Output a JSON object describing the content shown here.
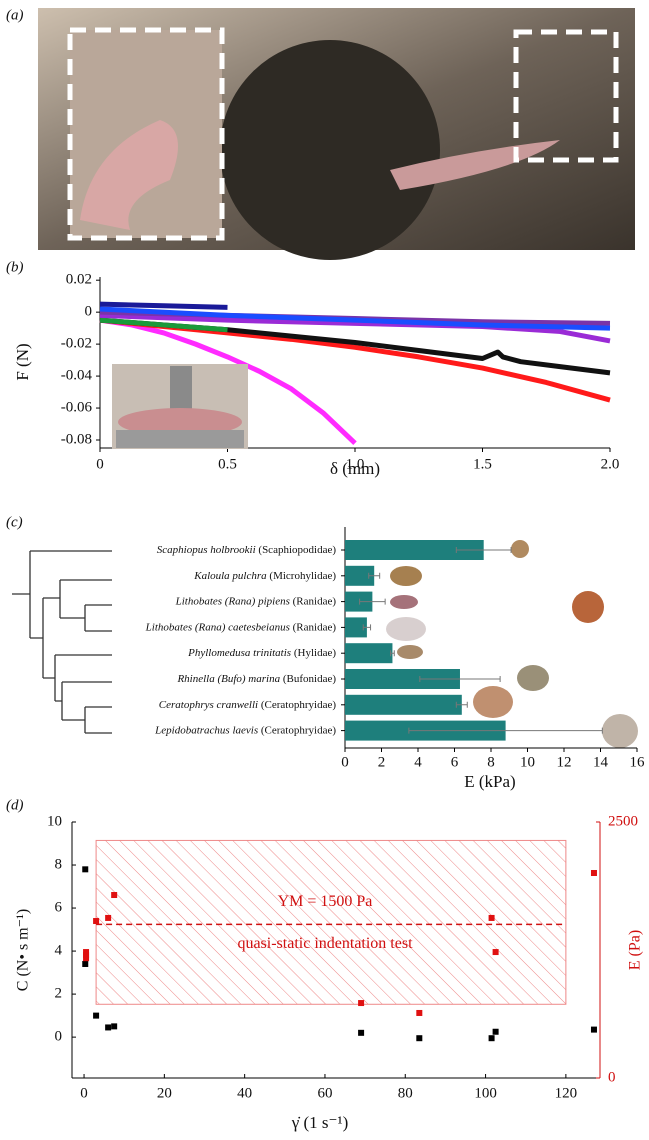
{
  "chart_data": [
    {
      "type": "image",
      "panel_label": "(a)"
    },
    {
      "type": "line",
      "panel_label": "(b)",
      "ylabel": "F (N)",
      "xlabel": "δ (mm)",
      "xlim": [
        0,
        2
      ],
      "ylim": [
        -0.085,
        0.022
      ],
      "xticks": [
        0,
        0.5,
        {
          "value": 1,
          "label": "1.0"
        },
        1.5,
        {
          "value": 2,
          "label": "2.0"
        }
      ],
      "yticks": [
        0.02,
        0,
        -0.02,
        -0.04,
        -0.06,
        -0.08
      ],
      "series": [
        {
          "color": "#ff2bff",
          "x": [
            0,
            0.125,
            0.25,
            0.375,
            0.5,
            0.625,
            0.75,
            0.875,
            1.0
          ],
          "values": [
            -0.005,
            -0.008,
            -0.013,
            -0.02,
            -0.028,
            -0.037,
            -0.048,
            -0.063,
            -0.082
          ]
        },
        {
          "color": "#ff1a1a",
          "x": [
            0,
            0.25,
            0.5,
            0.75,
            1.0,
            1.25,
            1.5,
            1.75,
            2.0
          ],
          "values": [
            -0.005,
            -0.009,
            -0.013,
            -0.017,
            -0.022,
            -0.028,
            -0.035,
            -0.044,
            -0.055
          ]
        },
        {
          "color": "#111111",
          "x": [
            0,
            0.25,
            0.5,
            0.75,
            1.0,
            1.25,
            1.5,
            1.56,
            1.58,
            1.65,
            1.8,
            2.0
          ],
          "values": [
            -0.005,
            -0.008,
            -0.011,
            -0.015,
            -0.019,
            -0.024,
            -0.029,
            -0.025,
            -0.028,
            -0.031,
            -0.034,
            -0.038
          ]
        },
        {
          "color": "#1a9a3a",
          "x": [
            0,
            0.25,
            0.5
          ],
          "values": [
            -0.005,
            -0.008,
            -0.011
          ]
        },
        {
          "color": "#9a2bd6",
          "x": [
            0,
            0.5,
            1.0,
            1.5,
            1.8,
            2.0
          ],
          "values": [
            -0.002,
            -0.005,
            -0.007,
            -0.009,
            -0.012,
            -0.018
          ]
        },
        {
          "color": "#7a33a8",
          "x": [
            0,
            0.5,
            1.0,
            1.5,
            2.0
          ],
          "values": [
            0.0,
            -0.002,
            -0.004,
            -0.006,
            -0.007
          ]
        },
        {
          "color": "#1a4dff",
          "x": [
            0,
            0.5,
            1.0,
            1.5,
            2.0
          ],
          "values": [
            0.002,
            -0.002,
            -0.005,
            -0.008,
            -0.01
          ]
        },
        {
          "color": "#1a1a99",
          "x": [
            0,
            0.25,
            0.5
          ],
          "values": [
            0.005,
            0.004,
            0.003
          ]
        }
      ]
    },
    {
      "type": "bar",
      "panel_label": "(c)",
      "xlabel": "E (kPa)",
      "color": "#1e7f7c",
      "categories": [
        "Scaphiopus holbrookii (Scaphiopodidae)",
        "Kaloula pulchra (Microhylidae)",
        "Lithobates (Rana) pipiens (Ranidae)",
        "Lithobates (Rana) caetesbeianus (Ranidae)",
        "Phyllomedusa trinitatis (Hylidae)",
        "Rhinella (Bufo) marina (Bufonidae)",
        "Ceratophrys cranwelli (Ceratophryidae)",
        "Lepidobatrachus laevis (Ceratophryidae)"
      ],
      "values": [
        7.6,
        1.6,
        1.5,
        1.2,
        2.6,
        6.3,
        6.4,
        8.8
      ],
      "errors": [
        1.5,
        0.3,
        0.7,
        0.2,
        0.1,
        2.2,
        0.3,
        5.3
      ],
      "xlim": [
        0,
        16
      ],
      "xticks": [
        0,
        2,
        4,
        6,
        8,
        10,
        12,
        14,
        16
      ]
    },
    {
      "type": "scatter",
      "panel_label": "(d)",
      "xlabel": "γ̇ (1 s⁻¹)",
      "ylabel": "C (N• s m⁻¹)",
      "y2label": "E (Pa)",
      "xlim": [
        -3,
        128.5
      ],
      "ylim": [
        -1.9,
        10
      ],
      "y2lim": [
        0,
        2500
      ],
      "xticks": [
        0,
        20,
        40,
        60,
        80,
        100,
        120
      ],
      "yticks": [
        0,
        2,
        4,
        6,
        8,
        10
      ],
      "y2ticks": [
        0,
        2500
      ],
      "series": [
        {
          "color": "#000000",
          "x": [
            0.3,
            0.3,
            3,
            6,
            7.5,
            69,
            83.5,
            101.5,
            102.5,
            127
          ],
          "values": [
            7.8,
            3.4,
            1.0,
            0.45,
            0.5,
            0.2,
            -0.05,
            -0.05,
            0.25,
            0.35
          ]
        },
        {
          "color": "#e01010",
          "axis": "y2",
          "x": [
            0.5,
            0.5,
            0.5,
            3,
            6,
            7.5,
            69,
            83.5,
            101.5,
            102.5,
            127
          ],
          "values": [
            1170,
            1200,
            1230,
            1533,
            1563,
            1787,
            732,
            635,
            1563,
            1230,
            2002
          ]
        }
      ],
      "shaded_range": {
        "x": [
          3,
          120
        ],
        "y2": [
          720,
          2320
        ]
      },
      "reference_line": 1500,
      "annotations": [
        "YM = 1500 Pa",
        "quasi-static indentation test"
      ]
    }
  ]
}
